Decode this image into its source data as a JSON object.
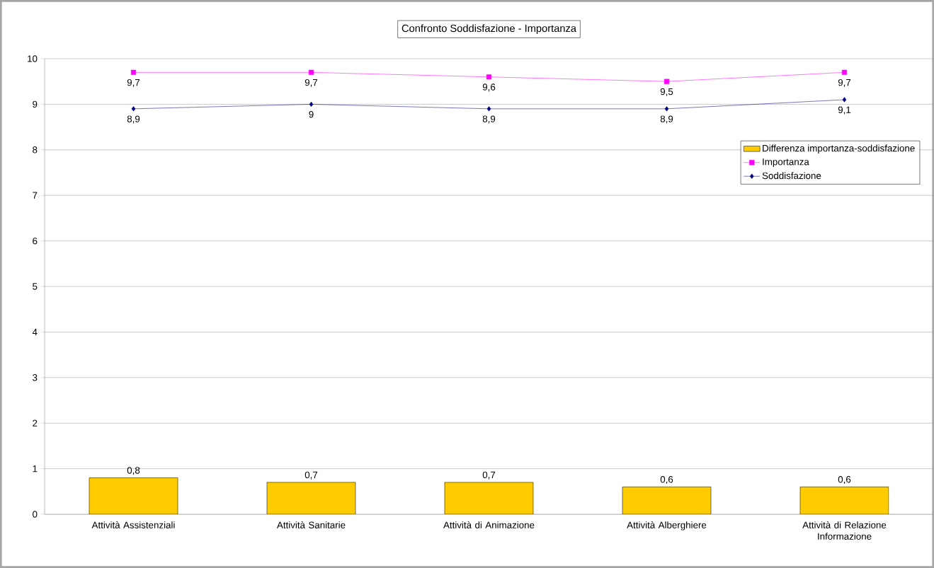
{
  "chart_data": {
    "type": "bar",
    "title": "Confronto Soddisfazione - Importanza",
    "categories": [
      "Attività Assistenziali",
      "Attività Sanitarie",
      "Attività di Animazione",
      "Attività Alberghiere",
      "Attività di Relazione Informazione"
    ],
    "series": [
      {
        "name": "Differenza importanza-soddisfazione",
        "color": "#ffcc00",
        "values": [
          0.8,
          0.7,
          0.7,
          0.6,
          0.6
        ],
        "value_labels": [
          "0,8",
          "0,7",
          "0,7",
          "0,6",
          "0,6"
        ]
      },
      {
        "name": "Importanza",
        "type": "line",
        "color": "#ff00ff",
        "marker": "square",
        "values": [
          9.7,
          9.7,
          9.6,
          9.5,
          9.7
        ],
        "value_labels": [
          "9,7",
          "9,7",
          "9,6",
          "9,5",
          "9,7"
        ]
      },
      {
        "name": "Soddisfazione",
        "type": "line",
        "color": "#000080",
        "marker": "diamond",
        "values": [
          8.9,
          9.0,
          8.9,
          8.9,
          9.1
        ],
        "value_labels": [
          "8,9",
          "9",
          "8,9",
          "8,9",
          "9,1"
        ]
      }
    ],
    "ylim": [
      0,
      10
    ],
    "yticks": [
      0,
      1,
      2,
      3,
      4,
      5,
      6,
      7,
      8,
      9,
      10
    ],
    "grid": "y",
    "legend": "top right"
  }
}
